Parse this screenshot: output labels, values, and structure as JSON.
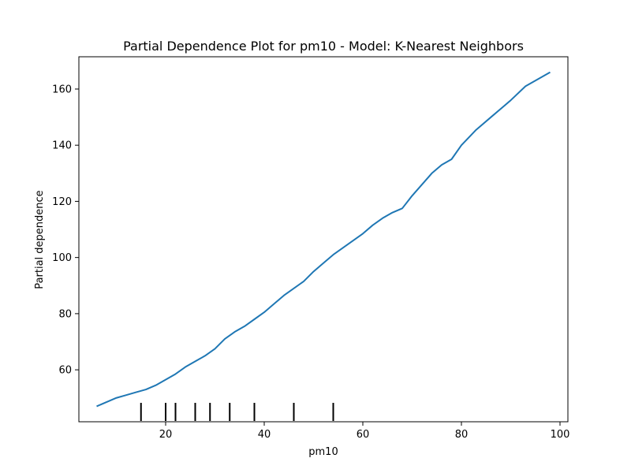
{
  "chart_data": {
    "type": "line",
    "title": "Partial Dependence Plot for pm10 - Model: K-Nearest Neighbors",
    "xlabel": "pm10",
    "ylabel": "Partial dependence",
    "xlim": [
      2.4,
      101.6
    ],
    "ylim": [
      41.5,
      171.5
    ],
    "xticks": [
      20,
      40,
      60,
      80,
      100
    ],
    "yticks": [
      60,
      80,
      100,
      120,
      140,
      160
    ],
    "grid": false,
    "line_color": "#1f77b4",
    "series": [
      {
        "x": [
          6,
          8,
          10,
          12,
          14,
          16,
          18,
          20,
          22,
          24,
          26,
          28,
          30,
          32,
          34,
          36,
          38,
          40,
          42,
          44,
          46,
          48,
          50,
          52,
          54,
          56,
          58,
          60,
          62,
          64,
          66,
          68,
          70,
          72,
          74,
          76,
          78,
          80,
          83,
          86,
          90,
          93,
          98
        ],
        "y": [
          47,
          48.5,
          50,
          51,
          52,
          53,
          54.5,
          56.5,
          58.5,
          61,
          63,
          65,
          67.5,
          71,
          73.5,
          75.5,
          78,
          80.5,
          83.5,
          86.5,
          89,
          91.5,
          95,
          98,
          101,
          103.5,
          106,
          108.5,
          111.5,
          114,
          116,
          117.5,
          122,
          126,
          130,
          133,
          135,
          140,
          145.5,
          150,
          156,
          161,
          166
        ]
      }
    ],
    "rug_x": [
      15,
      20,
      22,
      26,
      29,
      33,
      38,
      46,
      54
    ]
  }
}
